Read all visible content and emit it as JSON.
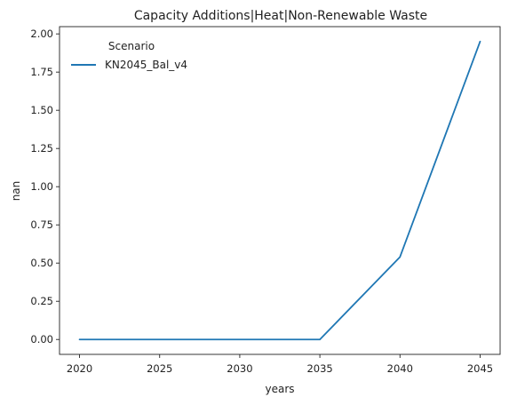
{
  "chart_data": {
    "type": "line",
    "title": "Capacity Additions|Heat|Non-Renewable Waste",
    "xlabel": "years",
    "ylabel": "nan",
    "x": [
      2020,
      2025,
      2030,
      2035,
      2040,
      2045
    ],
    "x_ticks": [
      "2020",
      "2025",
      "2030",
      "2035",
      "2040",
      "2045"
    ],
    "xlim": [
      2018.75,
      2046.25
    ],
    "y_ticks": [
      "0.00",
      "0.25",
      "0.50",
      "0.75",
      "1.00",
      "1.25",
      "1.50",
      "1.75",
      "2.00"
    ],
    "ylim": [
      -0.0975,
      2.0475
    ],
    "grid": false,
    "legend": {
      "title": "Scenario",
      "placement": "top-left"
    },
    "series": [
      {
        "name": "KN2045_Bal_v4",
        "color": "#1f77b4",
        "values": [
          0.0,
          0.0,
          0.0,
          0.0,
          0.54,
          1.95
        ]
      }
    ]
  }
}
